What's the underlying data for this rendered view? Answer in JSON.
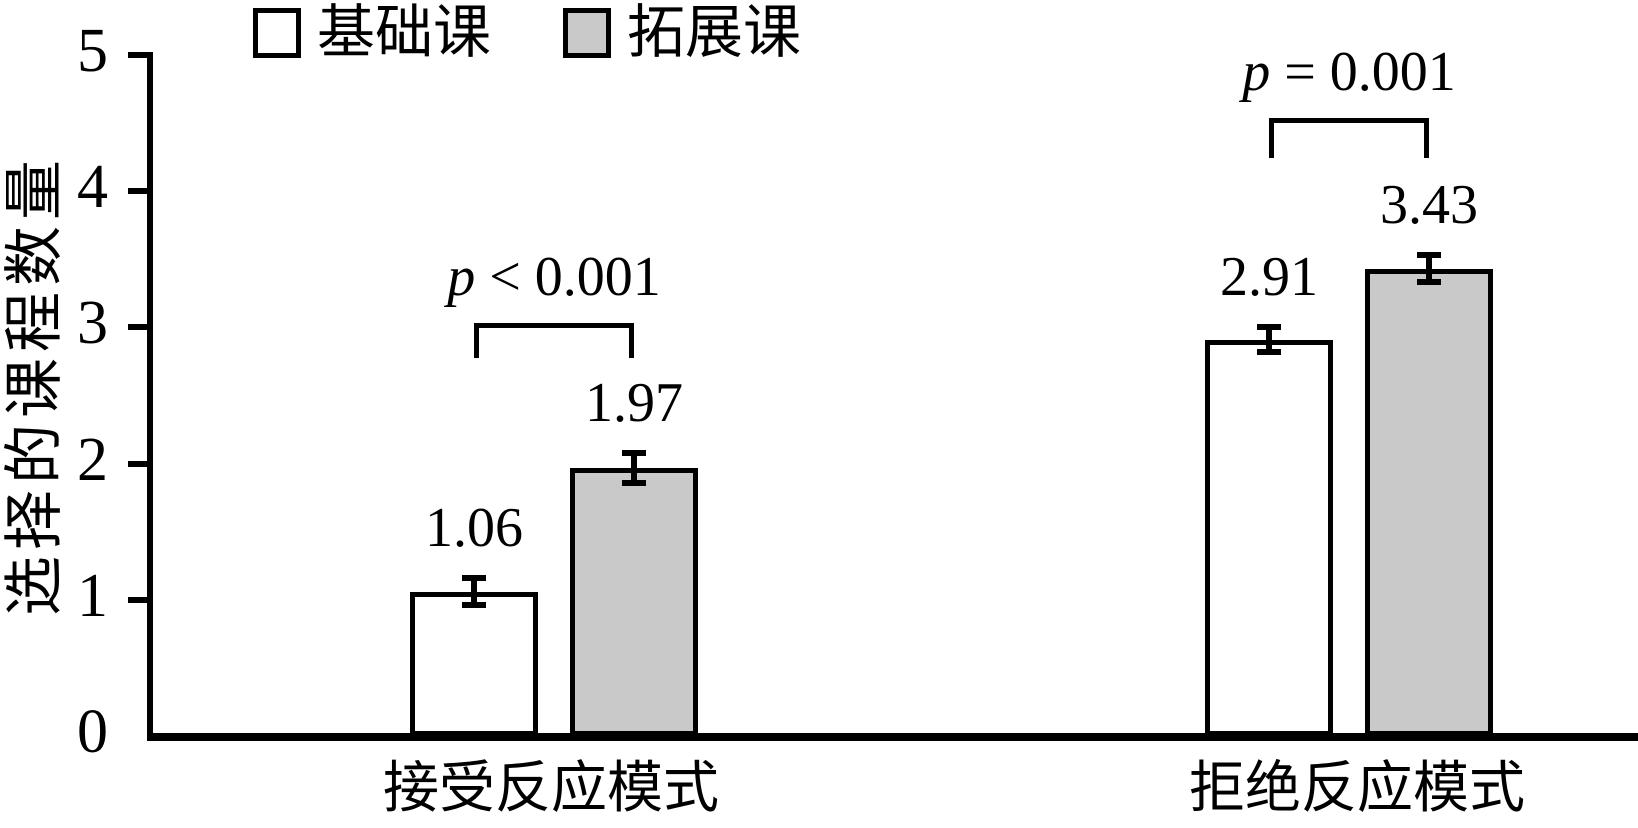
{
  "chart_data": {
    "type": "bar",
    "title": "",
    "ylabel": "选择的课程数量",
    "xlabel": "",
    "ylim": [
      0,
      5
    ],
    "yticks": [
      "0",
      "1",
      "2",
      "3",
      "4",
      "5"
    ],
    "grid": false,
    "legend_position": "top",
    "categories": [
      "接受反应模式",
      "拒绝反应模式"
    ],
    "series": [
      {
        "name": "基础课",
        "fill": "#ffffff",
        "edge_color": "#000000",
        "values": [
          1.06,
          2.91
        ],
        "errors": [
          0.1,
          0.09
        ],
        "value_labels": [
          "1.06",
          "2.91"
        ]
      },
      {
        "name": "拓展课",
        "fill": "#c9c9c9",
        "edge_color": "#000000",
        "values": [
          1.97,
          3.43
        ],
        "errors": [
          0.11,
          0.1
        ],
        "value_labels": [
          "1.97",
          "3.43"
        ]
      }
    ],
    "significance": [
      {
        "var": "p",
        "rest": " < 0.001"
      },
      {
        "var": "p",
        "rest": " = 0.001"
      }
    ]
  },
  "colors": {
    "bar_gray": "#c9c9c9",
    "ink": "#000000",
    "background": "#ffffff"
  }
}
